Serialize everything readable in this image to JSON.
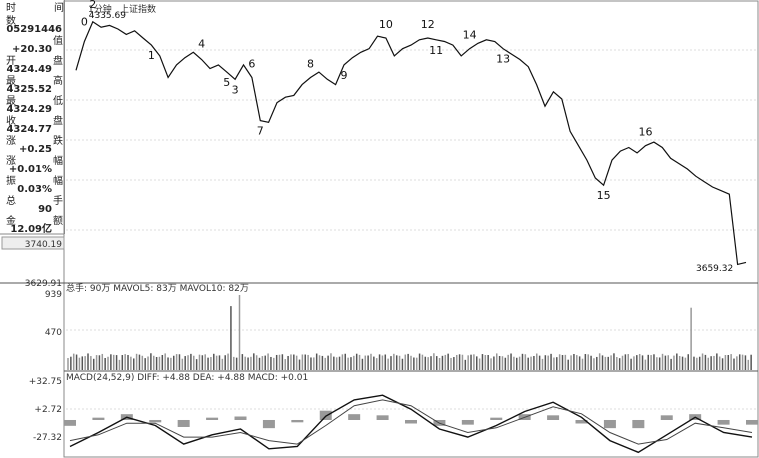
{
  "header": {
    "time_label_1": "时",
    "time_label_2": "间",
    "timeframe": "1分钟",
    "index_name": "上证指数"
  },
  "info_panel": {
    "rows": [
      {
        "label": "数",
        "value": "05291446",
        "suffix": ""
      },
      {
        "label": "",
        "value": "+20.30",
        "suffix": "值"
      },
      {
        "label": "开",
        "value": "4324.49",
        "suffix": "盘"
      },
      {
        "label": "最",
        "value": "4325.52",
        "suffix": "高"
      },
      {
        "label": "最",
        "value": "4324.29",
        "suffix": "低"
      },
      {
        "label": "收",
        "value": "4324.77",
        "suffix": "盘"
      },
      {
        "label": "涨",
        "value": "+0.25",
        "suffix": "跌"
      },
      {
        "label": "涨",
        "value": "+0.01%",
        "suffix": "幅"
      },
      {
        "label": "振",
        "value": "0.03%",
        "suffix": "幅"
      },
      {
        "label": "总",
        "value": "90",
        "suffix": "手"
      },
      {
        "label": "金",
        "value": "12.09亿",
        "suffix": "额"
      }
    ],
    "price_box": "3740.19"
  },
  "chart_data": [
    {
      "type": "line",
      "panel": "price",
      "ylim": [
        3629.91,
        4340
      ],
      "y_tick_labels": [
        "3629.91"
      ],
      "high_label": "4335.69",
      "low_label": "3659.32",
      "wave_labels": [
        "0",
        "1",
        "2",
        "3",
        "4",
        "5",
        "6",
        "7",
        "8",
        "9",
        "10",
        "11",
        "12",
        "13",
        "14",
        "15",
        "16"
      ],
      "x": [
        0,
        3,
        6,
        9,
        12,
        15,
        18,
        21,
        24,
        27,
        30,
        33,
        36,
        39,
        42,
        45,
        48,
        51,
        54,
        57,
        60,
        63,
        66,
        69,
        72,
        75,
        78,
        81,
        84,
        87,
        90,
        93,
        96,
        99,
        102,
        105,
        108,
        111,
        114,
        117,
        120,
        123,
        126,
        129,
        132,
        135,
        138,
        141,
        144,
        147,
        150,
        153,
        156,
        159,
        162,
        165,
        168,
        171,
        174,
        177,
        180,
        183,
        186,
        189,
        192,
        195,
        198,
        201,
        204,
        207,
        210,
        213,
        216,
        219,
        222,
        225,
        228,
        231,
        234,
        237,
        240
      ],
      "values": [
        4200,
        4280,
        4335,
        4320,
        4325,
        4315,
        4300,
        4310,
        4290,
        4270,
        4240,
        4180,
        4215,
        4235,
        4250,
        4230,
        4205,
        4215,
        4195,
        4175,
        4215,
        4180,
        4060,
        4055,
        4110,
        4125,
        4130,
        4160,
        4180,
        4195,
        4175,
        4160,
        4215,
        4235,
        4250,
        4260,
        4295,
        4290,
        4240,
        4260,
        4270,
        4285,
        4290,
        4285,
        4280,
        4270,
        4240,
        4260,
        4275,
        4285,
        4280,
        4260,
        4245,
        4230,
        4210,
        4160,
        4100,
        4140,
        4120,
        4030,
        3990,
        3950,
        3900,
        3880,
        3950,
        3975,
        3985,
        3970,
        3990,
        4000,
        3985,
        3955,
        3940,
        3925,
        3905,
        3890,
        3875,
        3865,
        3855,
        3659.32,
        3665
      ]
    },
    {
      "type": "bar",
      "panel": "volume",
      "title": "总手: 90万 MAVOL5: 83万 MAVOL10: 82万",
      "ylim": [
        0,
        939
      ],
      "y_tick_labels": [
        "939",
        "470"
      ],
      "spikes": [
        {
          "x": 57,
          "value": 800
        },
        {
          "x": 60,
          "value": 939
        },
        {
          "x": 218,
          "value": 780
        }
      ],
      "baseline": 120
    },
    {
      "type": "line",
      "panel": "macd",
      "title": "MACD(24,52,9) DIFF: +4.88 DEA: +4.88 MACD: +0.01",
      "ylim": [
        -27.32,
        32.75
      ],
      "y_tick_labels": [
        "+32.75",
        "+2.72",
        "-27.32"
      ],
      "diff_x": [
        0,
        10,
        20,
        30,
        40,
        50,
        60,
        70,
        80,
        90,
        100,
        110,
        120,
        130,
        140,
        150,
        160,
        170,
        180,
        190,
        200,
        210,
        220,
        230,
        240
      ],
      "diff_values": [
        -20,
        -8,
        5,
        -2,
        -18,
        -10,
        -5,
        -22,
        -20,
        6,
        20,
        24,
        12,
        -5,
        -12,
        -2,
        10,
        18,
        5,
        -15,
        -25,
        -10,
        5,
        -8,
        -12
      ],
      "dea_values": [
        -15,
        -10,
        0,
        0,
        -12,
        -12,
        -8,
        -15,
        -18,
        -2,
        15,
        20,
        15,
        0,
        -8,
        -4,
        5,
        14,
        8,
        -8,
        -18,
        -14,
        0,
        -4,
        -8
      ],
      "hist_values": [
        -5,
        2,
        5,
        -2,
        -6,
        2,
        3,
        -7,
        -2,
        8,
        5,
        4,
        -3,
        -5,
        -4,
        2,
        5,
        4,
        -3,
        -7,
        -7,
        4,
        5,
        -4,
        -4
      ]
    }
  ]
}
